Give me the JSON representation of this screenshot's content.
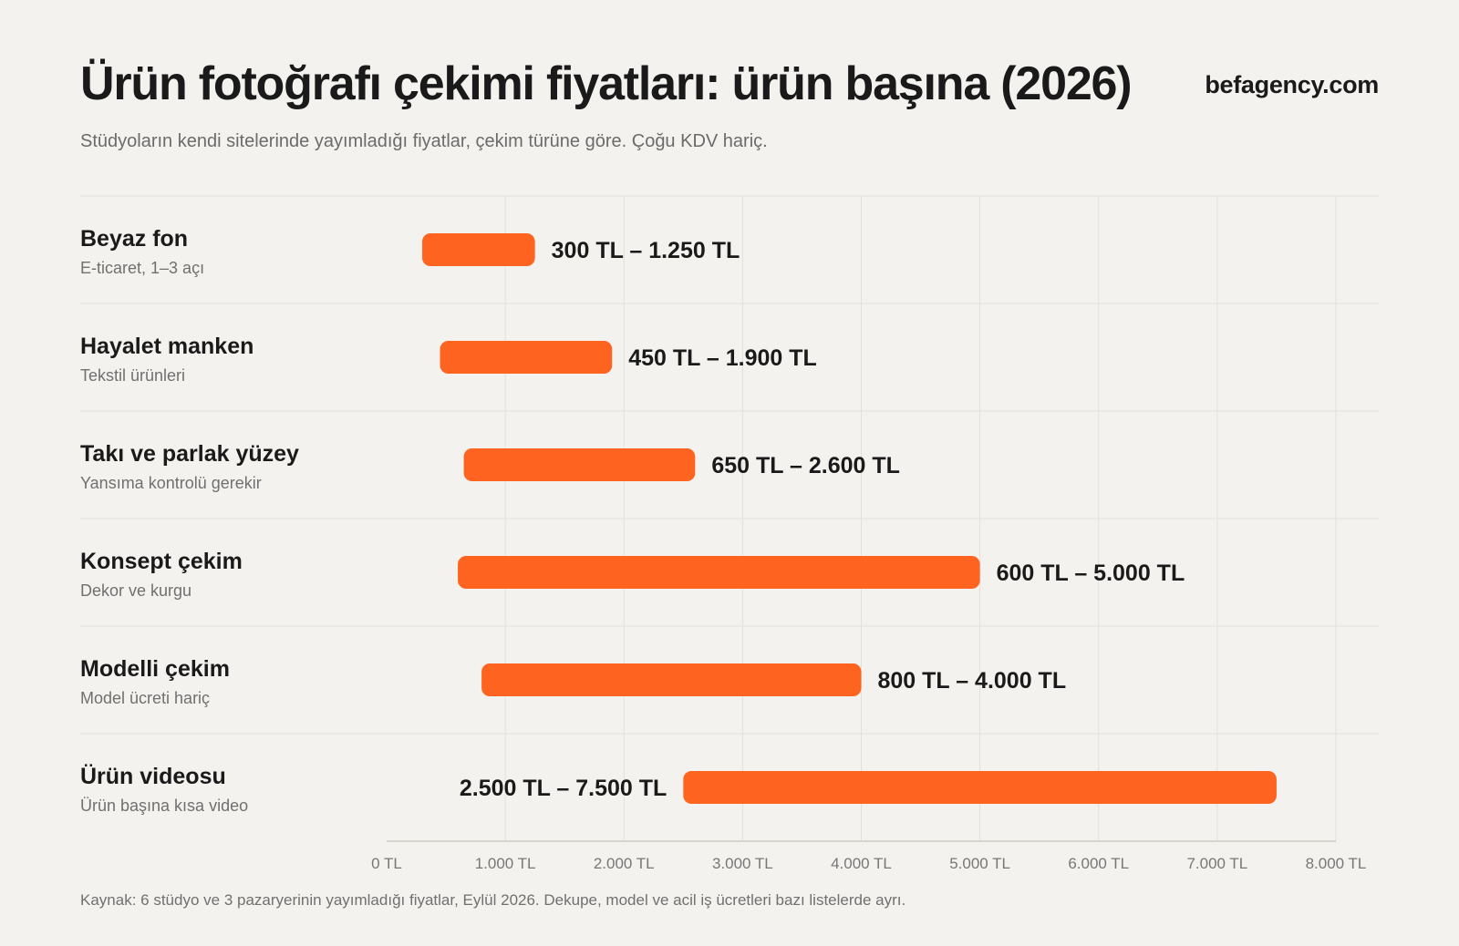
{
  "header": {
    "title": "Ürün fotoğrafı çekimi fiyatları: ürün başına (2026)",
    "subtitle": "Stüdyoların kendi sitelerinde yayımladığı fiyatlar, çekim türüne göre. Çoğu KDV hariç.",
    "brand": "befagency.com"
  },
  "footer": {
    "source": "Kaynak: 6 stüdyo ve 3 pazaryerinin yayımladığı fiyatlar, Eylül 2026. Dekupe, model ve acil iş ücretleri bazı listelerde ayrı."
  },
  "colors": {
    "bar": "#ff6320",
    "grid": "#e3e0da",
    "background": "#f4f2ee"
  },
  "chart_data": {
    "type": "bar",
    "orientation": "horizontal",
    "style": "range",
    "xlim": [
      0,
      8000
    ],
    "x_ticks": [
      {
        "value": 0,
        "label": "0 TL"
      },
      {
        "value": 1000,
        "label": "1.000 TL"
      },
      {
        "value": 2000,
        "label": "2.000 TL"
      },
      {
        "value": 3000,
        "label": "3.000 TL"
      },
      {
        "value": 4000,
        "label": "4.000 TL"
      },
      {
        "value": 5000,
        "label": "5.000 TL"
      },
      {
        "value": 6000,
        "label": "6.000 TL"
      },
      {
        "value": 7000,
        "label": "7.000 TL"
      },
      {
        "value": 8000,
        "label": "8.000 TL"
      }
    ],
    "grid": true,
    "categories": [
      {
        "name": "Beyaz fon",
        "desc": "E-ticaret, 1–3 açı",
        "min": 300,
        "max": 1250,
        "label": "300 TL – 1.250 TL",
        "label_side": "right"
      },
      {
        "name": "Hayalet manken",
        "desc": "Tekstil ürünleri",
        "min": 450,
        "max": 1900,
        "label": "450 TL – 1.900 TL",
        "label_side": "right"
      },
      {
        "name": "Takı ve parlak yüzey",
        "desc": "Yansıma kontrolü gerekir",
        "min": 650,
        "max": 2600,
        "label": "650 TL – 2.600 TL",
        "label_side": "right"
      },
      {
        "name": "Konsept çekim",
        "desc": "Dekor ve kurgu",
        "min": 600,
        "max": 5000,
        "label": "600 TL – 5.000 TL",
        "label_side": "right"
      },
      {
        "name": "Modelli çekim",
        "desc": "Model ücreti hariç",
        "min": 800,
        "max": 4000,
        "label": "800 TL – 4.000 TL",
        "label_side": "right"
      },
      {
        "name": "Ürün videosu",
        "desc": "Ürün başına kısa video",
        "min": 2500,
        "max": 7500,
        "label": "2.500 TL – 7.500 TL",
        "label_side": "left"
      }
    ]
  }
}
